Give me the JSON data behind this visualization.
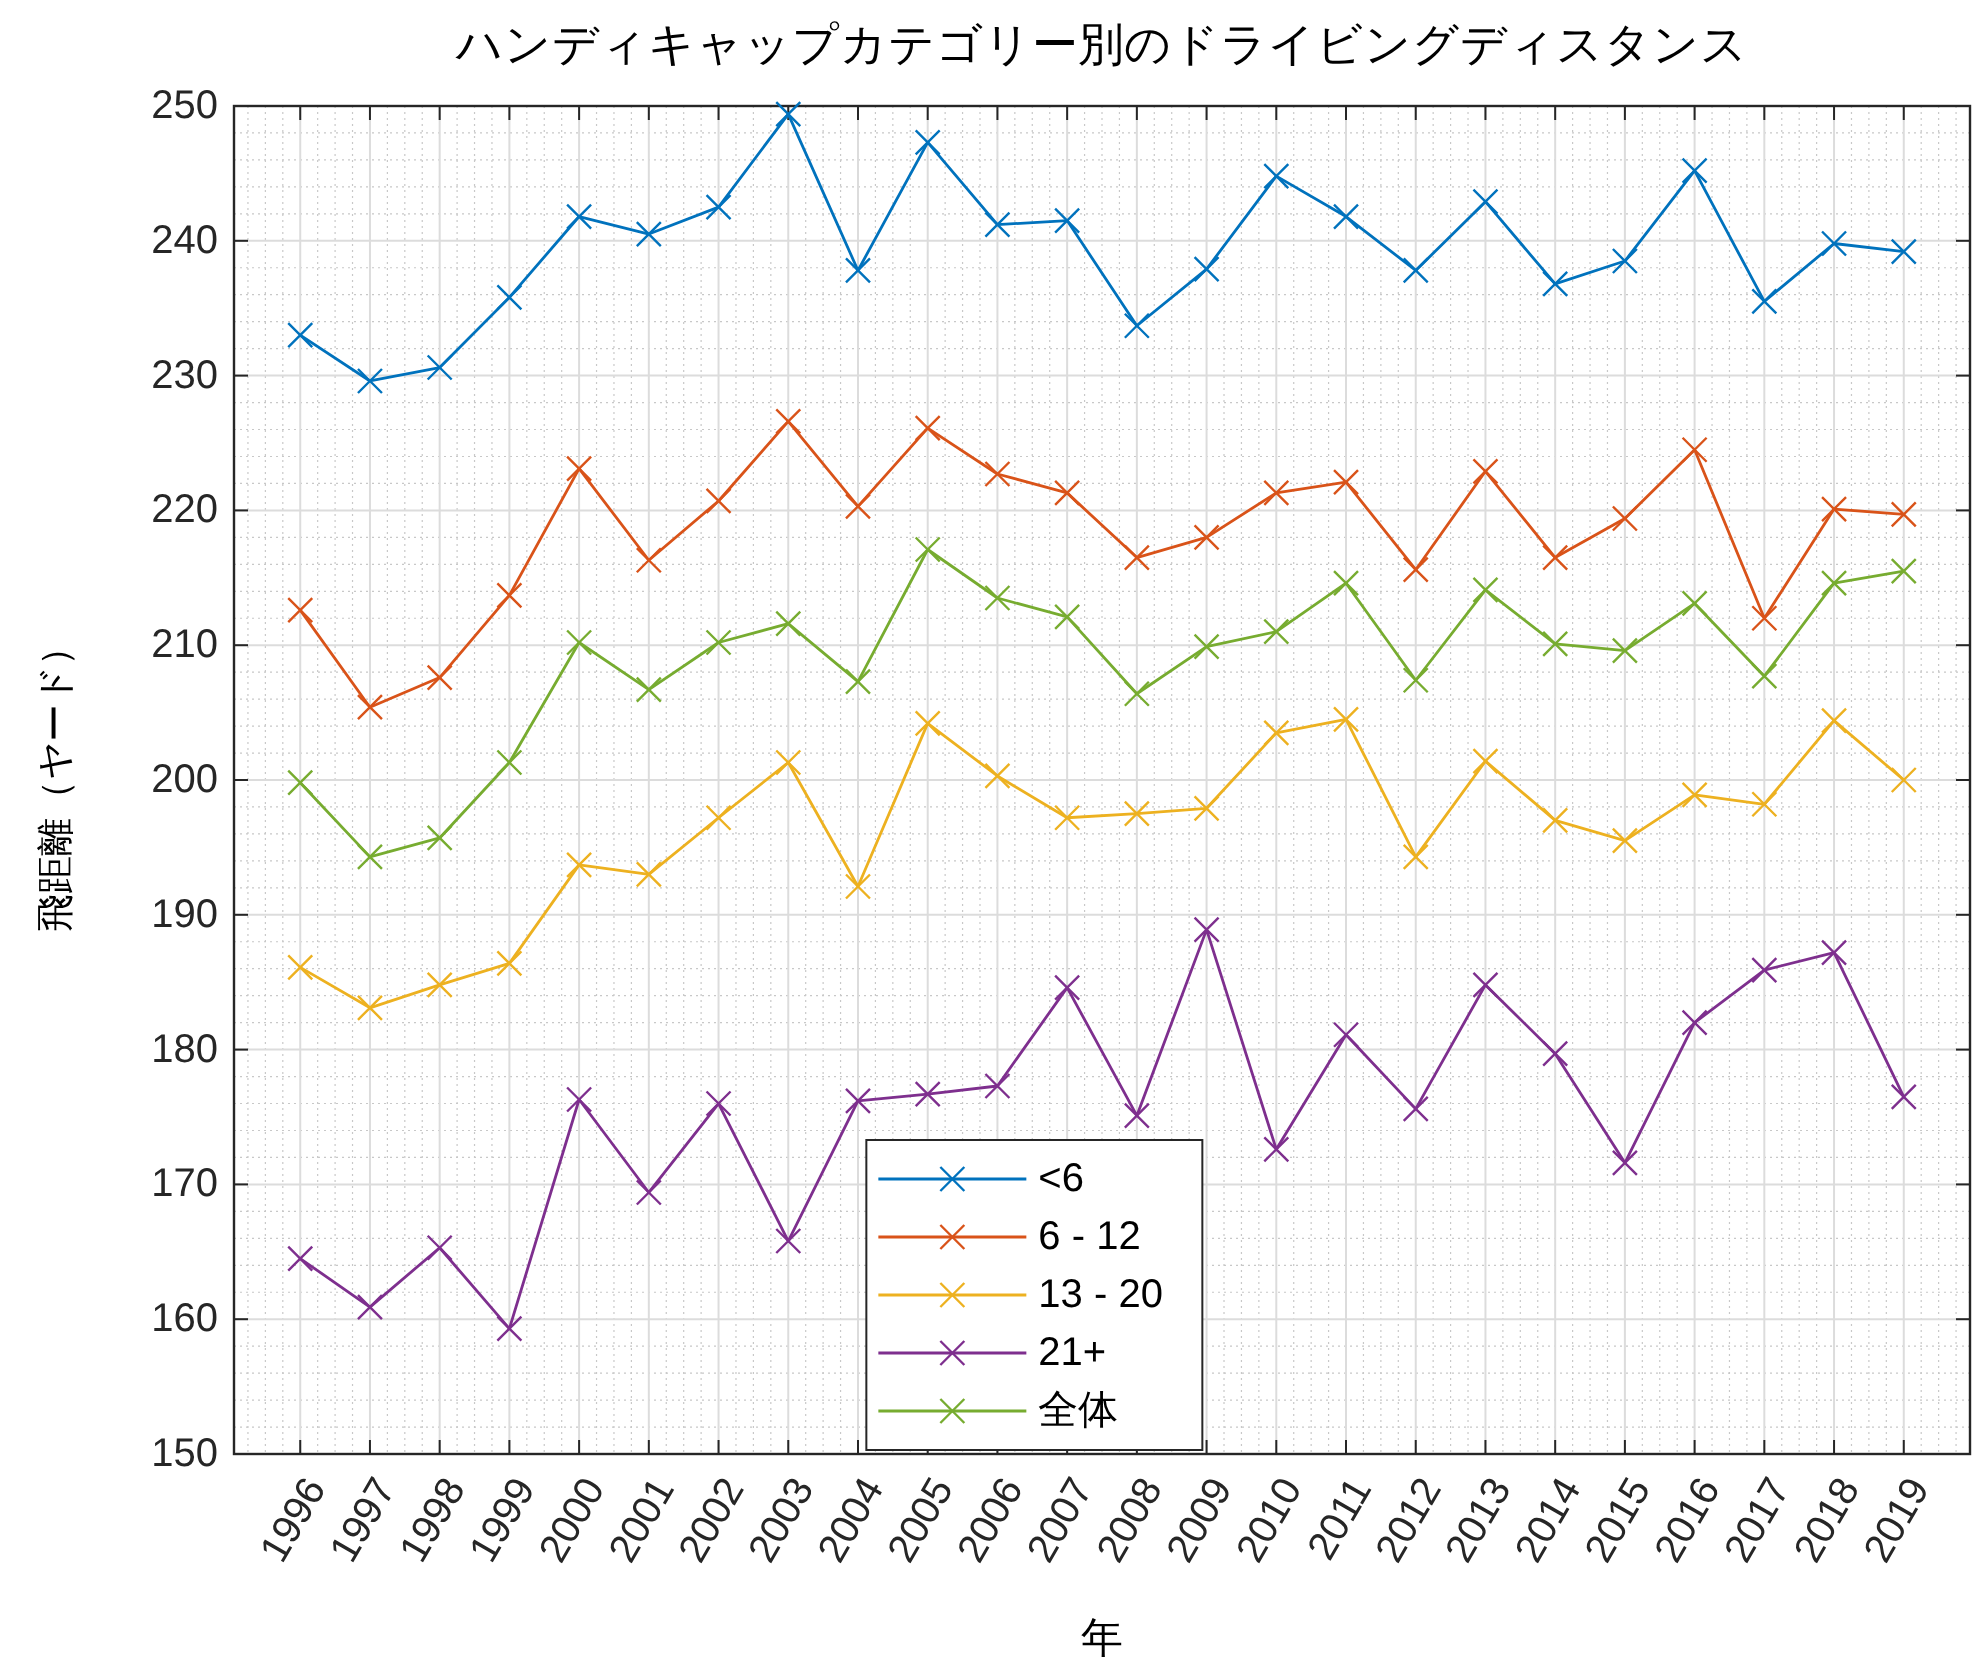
{
  "chart_data": {
    "type": "line",
    "title": "ハンディキャップカテゴリー別のドライビングディスタンス",
    "xlabel": "年",
    "ylabel": "飛距離（ヤード）",
    "categories": [
      "1996",
      "1997",
      "1998",
      "1999",
      "2000",
      "2001",
      "2002",
      "2003",
      "2004",
      "2005",
      "2006",
      "2007",
      "2008",
      "2009",
      "2010",
      "2011",
      "2012",
      "2013",
      "2014",
      "2015",
      "2016",
      "2017",
      "2018",
      "2019"
    ],
    "ylim": [
      150,
      250
    ],
    "yticks": [
      150,
      160,
      170,
      180,
      190,
      200,
      210,
      220,
      230,
      240,
      250
    ],
    "grid": true,
    "legend": "bottom",
    "marker": "cross",
    "series": [
      {
        "name": "<6",
        "color": "#0072bd",
        "values": [
          233.0,
          229.6,
          230.6,
          235.8,
          241.8,
          240.5,
          242.5,
          249.4,
          237.8,
          247.3,
          241.2,
          241.5,
          233.7,
          237.9,
          244.8,
          241.8,
          237.8,
          242.9,
          236.8,
          238.5,
          245.2,
          235.5,
          239.8,
          239.2
        ]
      },
      {
        "name": "6 - 12",
        "color": "#d95319",
        "values": [
          212.6,
          205.4,
          207.6,
          213.7,
          223.1,
          216.3,
          220.7,
          226.6,
          220.3,
          226.1,
          222.7,
          221.3,
          216.5,
          218.0,
          221.3,
          222.1,
          215.6,
          222.9,
          216.5,
          219.4,
          224.5,
          212.0,
          220.1,
          219.7
        ]
      },
      {
        "name": "13 - 20",
        "color": "#edb120",
        "values": [
          186.1,
          183.1,
          184.8,
          186.4,
          193.7,
          193.0,
          197.2,
          201.3,
          192.1,
          204.2,
          200.3,
          197.2,
          197.5,
          197.9,
          203.5,
          204.5,
          194.3,
          201.4,
          197.0,
          195.5,
          198.9,
          198.2,
          204.4,
          200.0
        ]
      },
      {
        "name": "21+",
        "color": "#7e2f8e",
        "values": [
          164.5,
          160.9,
          165.3,
          159.3,
          176.3,
          169.4,
          176.0,
          165.8,
          176.2,
          176.7,
          177.3,
          184.6,
          175.1,
          188.9,
          172.6,
          181.1,
          175.6,
          184.8,
          179.7,
          171.6,
          182.0,
          185.9,
          187.2,
          176.5
        ]
      },
      {
        "name": "全体",
        "color": "#77ac30",
        "values": [
          199.8,
          194.3,
          195.7,
          201.3,
          210.2,
          206.7,
          210.2,
          211.6,
          207.3,
          217.1,
          213.5,
          212.1,
          206.4,
          209.9,
          211.0,
          214.6,
          207.4,
          214.1,
          210.1,
          209.6,
          213.1,
          207.7,
          214.6,
          215.5
        ]
      }
    ]
  }
}
